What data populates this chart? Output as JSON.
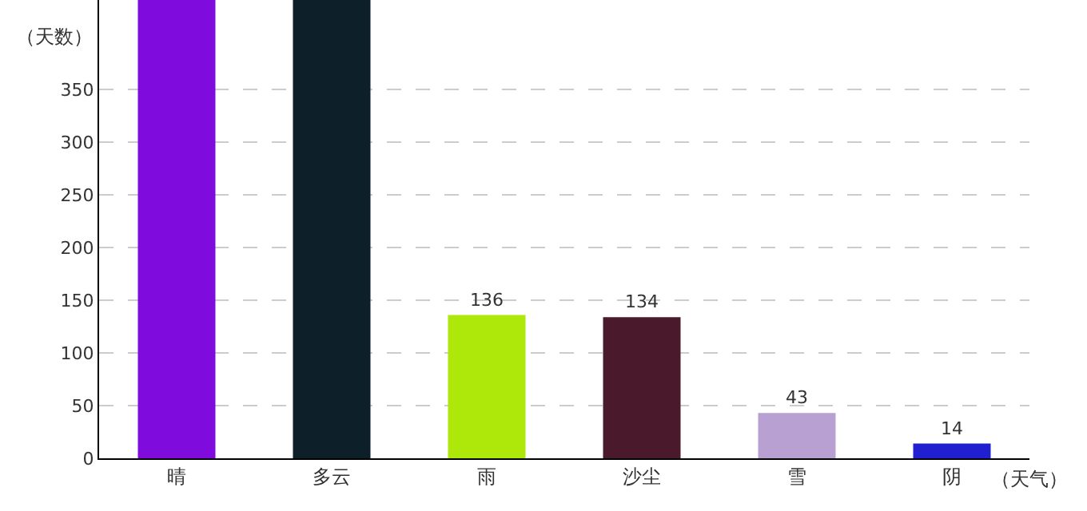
{
  "chart_data": {
    "type": "bar",
    "xlabel": "（天气）",
    "ylabel": "（天数）",
    "categories": [
      "晴",
      "多云",
      "雨",
      "沙尘",
      "雪",
      "阴"
    ],
    "values": [
      435,
      435,
      136,
      134,
      43,
      14
    ],
    "colors": [
      "#7f0cdc",
      "#0d1f28",
      "#aee80a",
      "#4a1a2c",
      "#b9a0d3",
      "#2020d0"
    ],
    "value_labels": [
      null,
      null,
      "136",
      "134",
      "43",
      "14"
    ],
    "ylim": [
      0,
      435
    ],
    "yticks": [
      0,
      50,
      100,
      150,
      200,
      250,
      300,
      350
    ],
    "grid": "y"
  }
}
